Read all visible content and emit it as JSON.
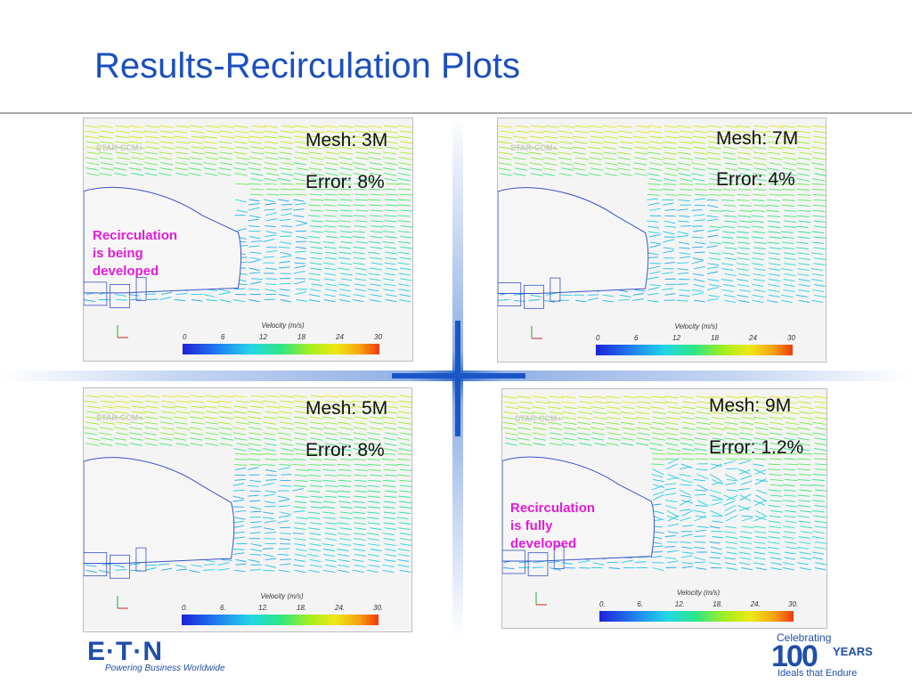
{
  "slide": {
    "title": "Results-Recirculation Plots"
  },
  "colors": {
    "title": "#1a4fbf",
    "annotation": "#e01dd6",
    "brand": "#1f4fa8",
    "cross_accent": "#1a56c6"
  },
  "panels": [
    {
      "mesh": "Mesh: 3M",
      "error": "Error: 8%",
      "note": [
        "Recirculation",
        "is being",
        "developed"
      ],
      "legend_title": "Velocity (m/s)",
      "ticks": [
        "0",
        "6",
        "12",
        "18",
        "24",
        "30"
      ],
      "watermark": "STAR-CCM+"
    },
    {
      "mesh": "Mesh: 7M",
      "error": "Error: 4%",
      "note": [],
      "legend_title": "Velocity (m/s)",
      "ticks": [
        "0",
        "6",
        "12",
        "18",
        "24",
        "30"
      ],
      "watermark": "STAR-CCM+"
    },
    {
      "mesh": "Mesh: 5M",
      "error": "Error: 8%",
      "note": [],
      "legend_title": "Velocity (m/s)",
      "ticks": [
        "0.",
        "6.",
        "12.",
        "18.",
        "24.",
        "30."
      ],
      "watermark": "STAR-CCM+"
    },
    {
      "mesh": "Mesh: 9M",
      "error": "Error: 1.2%",
      "note": [
        "Recirculation",
        "is fully",
        "developed"
      ],
      "legend_title": "Velocity (m/s)",
      "ticks": [
        "0.",
        "6.",
        "12.",
        "18.",
        "24.",
        "30."
      ],
      "watermark": "STAR-CCM+"
    }
  ],
  "footer": {
    "eaton_logo": "E·T·N",
    "eaton_tagline": "Powering Business Worldwide",
    "centennial": {
      "celebrating": "Celebrating",
      "number": "100",
      "years": "YEARS",
      "tagline": "Ideals that Endure"
    }
  }
}
